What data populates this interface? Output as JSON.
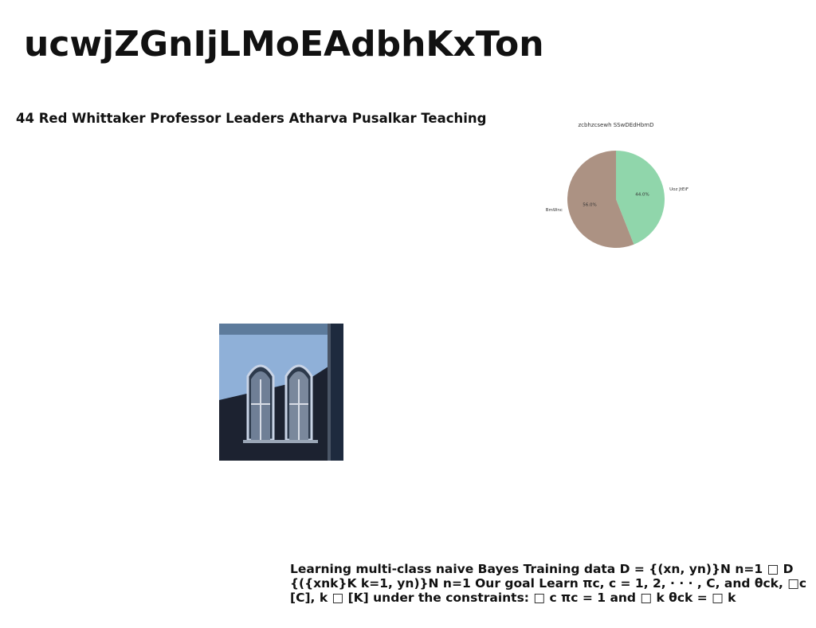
{
  "title": "ucwjZGnIjLMoEAdbhKxTon",
  "subtitle": "44 Red Whittaker Professor Leaders Atharva Pusalkar Teaching",
  "chart_data": {
    "type": "pie",
    "title": "zcbhzcsewh SSwDEdHbmD",
    "slices": [
      {
        "label": "Uoz JtEiF",
        "value": 44.0,
        "pct_label": "44.0%",
        "color": "#90d6ab"
      },
      {
        "label": "BmWnc",
        "value": 56.0,
        "pct_label": "56.0%",
        "color": "#ac9283"
      }
    ]
  },
  "photo": {
    "alt": ""
  },
  "body_lines": [
    "Learning multi-class naive Bayes Training data D = {(xn, yn)}N n=1 □ D",
    "{({xnk}K k=1, yn)}N n=1 Our goal Learn πc, c = 1, 2, · · · , C, and θck, □c",
    "[C], k □ [K] under the constraints: □ c πc = 1 and □ k θck = □ k"
  ]
}
